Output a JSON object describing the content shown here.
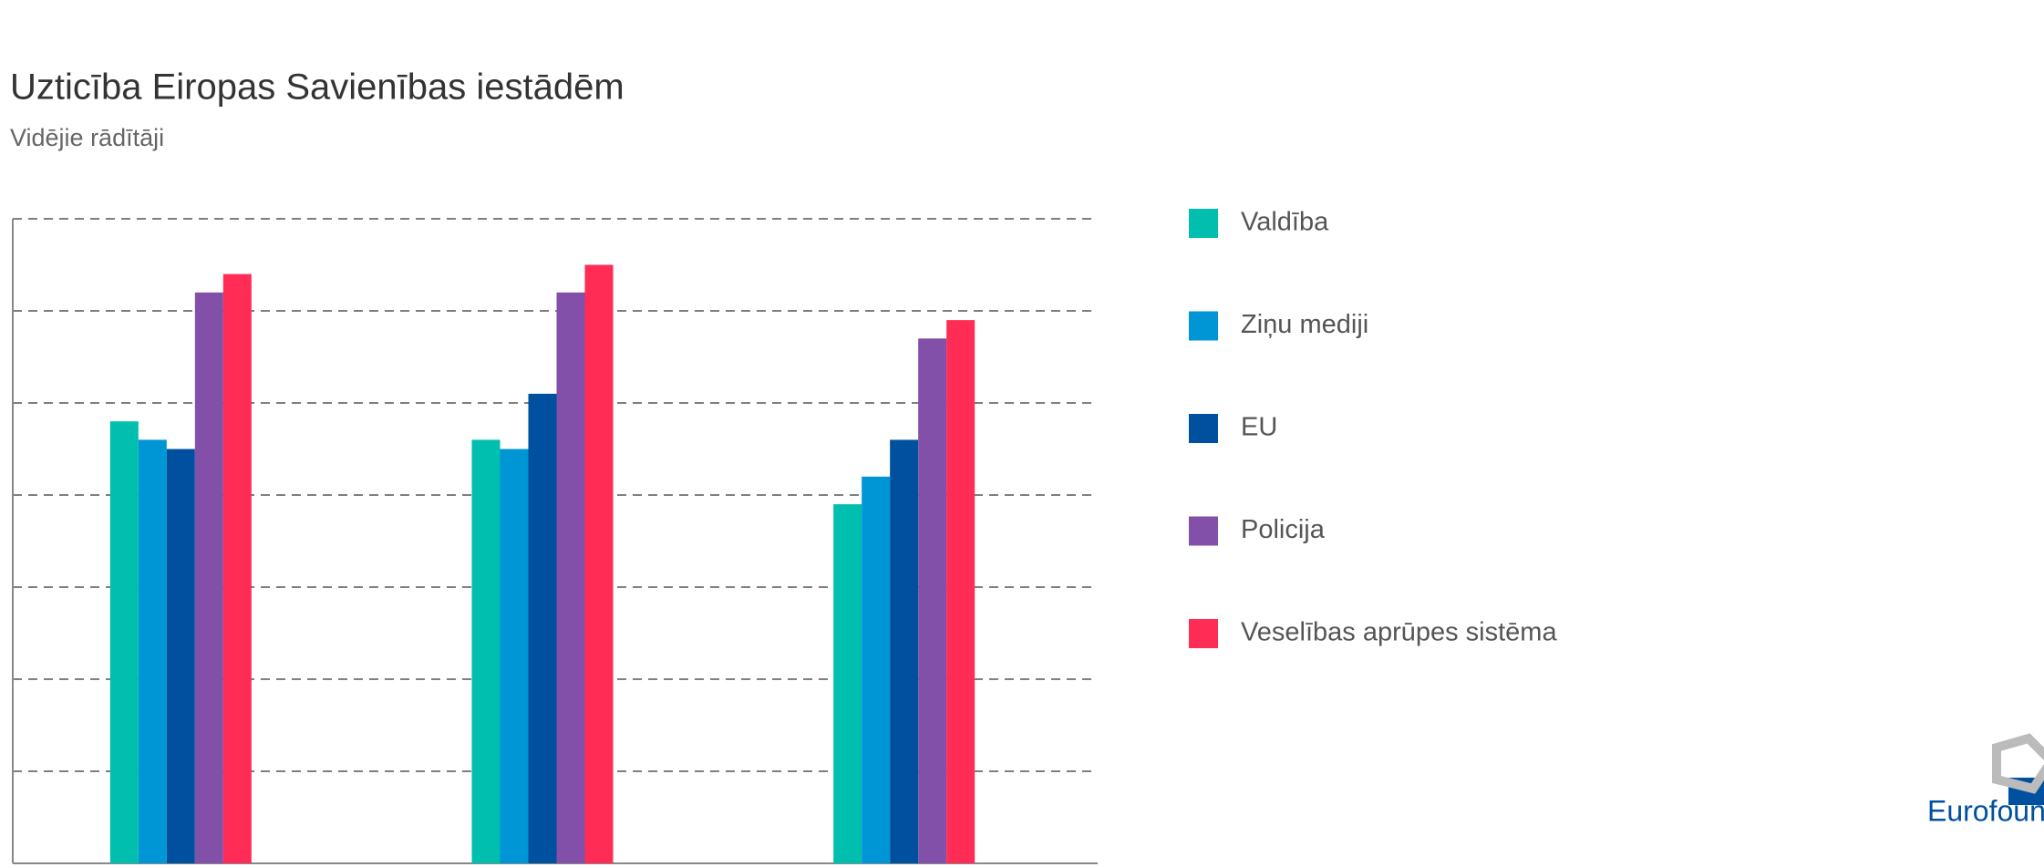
{
  "chart_data": {
    "type": "bar",
    "title": "Uzticība Eiropas Savienības iestādēm",
    "subtitle": "Vidējie rādītāji",
    "categories": [
      null,
      null,
      null
    ],
    "series": [
      {
        "name": "Valdība",
        "color": "#00bfae",
        "values": [
          4.8,
          4.6,
          3.9
        ]
      },
      {
        "name": "Ziņu mediji",
        "color": "#0096d6",
        "values": [
          4.6,
          4.5,
          4.2
        ]
      },
      {
        "name": "EU",
        "color": "#0050a0",
        "values": [
          4.5,
          5.1,
          4.6
        ]
      },
      {
        "name": "Policija",
        "color": "#8250a8",
        "values": [
          6.2,
          6.2,
          5.7
        ]
      },
      {
        "name": "Veselības aprūpes sistēma",
        "color": "#ff2d55",
        "values": [
          6.4,
          6.5,
          5.9
        ]
      }
    ],
    "ylim": [
      0,
      7
    ],
    "yticks": [
      1,
      2,
      3,
      4,
      5,
      6,
      7
    ],
    "grid": true,
    "logo": "Eurofound"
  }
}
